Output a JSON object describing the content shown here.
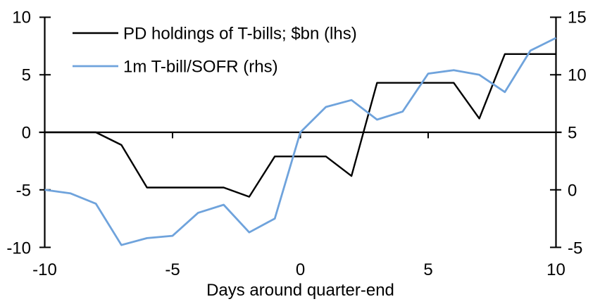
{
  "chart_data": {
    "type": "line",
    "title": "",
    "xlabel": "Days around quarter-end",
    "ylabel_left": "",
    "ylabel_right": "",
    "x": [
      -10,
      -9,
      -8,
      -7,
      -6,
      -5,
      -4,
      -3,
      -2,
      -1,
      0,
      1,
      2,
      3,
      4,
      5,
      6,
      7,
      8,
      9,
      10
    ],
    "x_ticks": [
      "-10",
      "-5",
      "0",
      "5",
      "10"
    ],
    "left_axis": {
      "min": -10,
      "max": 10,
      "ticks": [
        "10",
        "5",
        "0",
        "-5",
        "-10"
      ]
    },
    "right_axis": {
      "min": -5,
      "max": 15,
      "ticks": [
        "15",
        "10",
        "5",
        "0",
        "-5"
      ]
    },
    "series": [
      {
        "name": "PD holdings of T-bills; $bn (lhs)",
        "axis": "left",
        "color": "#000000",
        "stroke_width": 2.4,
        "values": [
          0,
          0,
          0,
          -1.1,
          -4.8,
          -4.8,
          -4.8,
          -4.8,
          -5.6,
          -2.1,
          -2.1,
          -2.1,
          -3.8,
          4.3,
          4.3,
          4.3,
          4.3,
          1.2,
          6.8,
          6.8,
          6.8
        ]
      },
      {
        "name": "1m T-bill/SOFR (rhs)",
        "axis": "right",
        "color": "#6FA3DC",
        "stroke_width": 2.8,
        "values": [
          0.0,
          -0.3,
          -1.2,
          -4.8,
          -4.2,
          -4.0,
          -2.0,
          -1.3,
          -3.7,
          -2.5,
          5.0,
          7.2,
          7.8,
          6.1,
          6.8,
          10.1,
          10.4,
          10.0,
          8.5,
          12.1,
          13.2
        ]
      }
    ],
    "grid": false,
    "legend_position": "top-left",
    "background_color": "#ffffff",
    "zero_line": true
  }
}
